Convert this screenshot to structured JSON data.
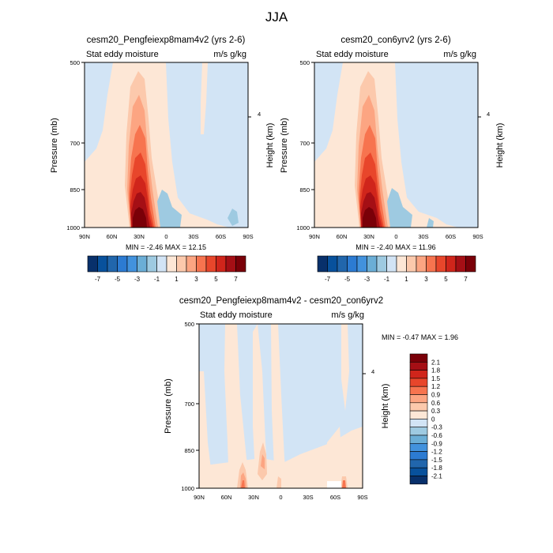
{
  "figure": {
    "title": "JJA"
  },
  "chart_data": [
    {
      "type": "heatmap",
      "title": "cesm20_Pengfeiexp8mam4v2 (yrs 2-6)",
      "left_label": "Stat eddy moisture",
      "right_label": "m/s g/kg",
      "ylabel": "Pressure (mb)",
      "ylabel_right": "Height (km)",
      "x_ticks": [
        "90N",
        "60N",
        "30N",
        "0",
        "30S",
        "60S",
        "90S"
      ],
      "y_ticks": [
        "500",
        "700",
        "850",
        "1000"
      ],
      "y_right_ticks": [
        "4"
      ],
      "xlim": [
        90,
        -90
      ],
      "ylim": [
        1000,
        500
      ],
      "min_max_text": "MIN =  -2.46   MAX =  12.15",
      "colorbar": {
        "orientation": "horizontal",
        "labels": [
          "-7",
          "-5",
          "-3",
          "-1",
          "1",
          "3",
          "5",
          "7"
        ]
      }
    },
    {
      "type": "heatmap",
      "title": "cesm20_con6yrv2 (yrs 2-6)",
      "left_label": "Stat eddy moisture",
      "right_label": "m/s g/kg",
      "ylabel": "Pressure (mb)",
      "ylabel_right": "Height (km)",
      "x_ticks": [
        "90N",
        "60N",
        "30N",
        "0",
        "30S",
        "60S",
        "90S"
      ],
      "y_ticks": [
        "500",
        "700",
        "850",
        "1000"
      ],
      "y_right_ticks": [
        "4"
      ],
      "xlim": [
        90,
        -90
      ],
      "ylim": [
        1000,
        500
      ],
      "min_max_text": "MIN =  -2.40   MAX =  11.96",
      "colorbar": {
        "orientation": "horizontal",
        "labels": [
          "-7",
          "-5",
          "-3",
          "-1",
          "1",
          "3",
          "5",
          "7"
        ]
      }
    },
    {
      "type": "heatmap",
      "title": "cesm20_Pengfeiexp8mam4v2 - cesm20_con6yrv2",
      "left_label": "Stat eddy moisture",
      "right_label": "m/s g/kg",
      "ylabel": "Pressure (mb)",
      "ylabel_right": "Height (km)",
      "x_ticks": [
        "90N",
        "60N",
        "30N",
        "0",
        "30S",
        "60S",
        "90S"
      ],
      "y_ticks": [
        "500",
        "700",
        "850",
        "1000"
      ],
      "y_right_ticks": [
        "4"
      ],
      "xlim": [
        90,
        -90
      ],
      "ylim": [
        1000,
        500
      ],
      "min_max_text": "MIN =  -0.47   MAX =    1.96",
      "colorbar": {
        "orientation": "vertical",
        "labels": [
          "2.1",
          "1.8",
          "1.5",
          "1.2",
          "0.9",
          "0.6",
          "0.3",
          "0",
          "-0.3",
          "-0.6",
          "-0.9",
          "-1.2",
          "-1.5",
          "-1.8",
          "-2.1"
        ]
      }
    }
  ],
  "colors": {
    "scale_16": [
      "#08306b",
      "#08519c",
      "#2166ac",
      "#2c7bd2",
      "#4292dd",
      "#6baed6",
      "#9ecae1",
      "#d2e4f5",
      "#fde7d6",
      "#fcc9ac",
      "#fca582",
      "#f7744f",
      "#e8462b",
      "#d0251b",
      "#a50f15",
      "#7a0008"
    ],
    "scale_16_labels": [
      "#08306b",
      "#08519c",
      "#2166ac",
      "#2c7bd2",
      "#4292dd",
      "#6baed6",
      "#9ecae1",
      "#d2e4f5",
      "#fde7d6",
      "#fcc9ac",
      "#fca582",
      "#f7744f",
      "#e8462b",
      "#d0251b",
      "#a50f15",
      "#7a0008"
    ]
  }
}
